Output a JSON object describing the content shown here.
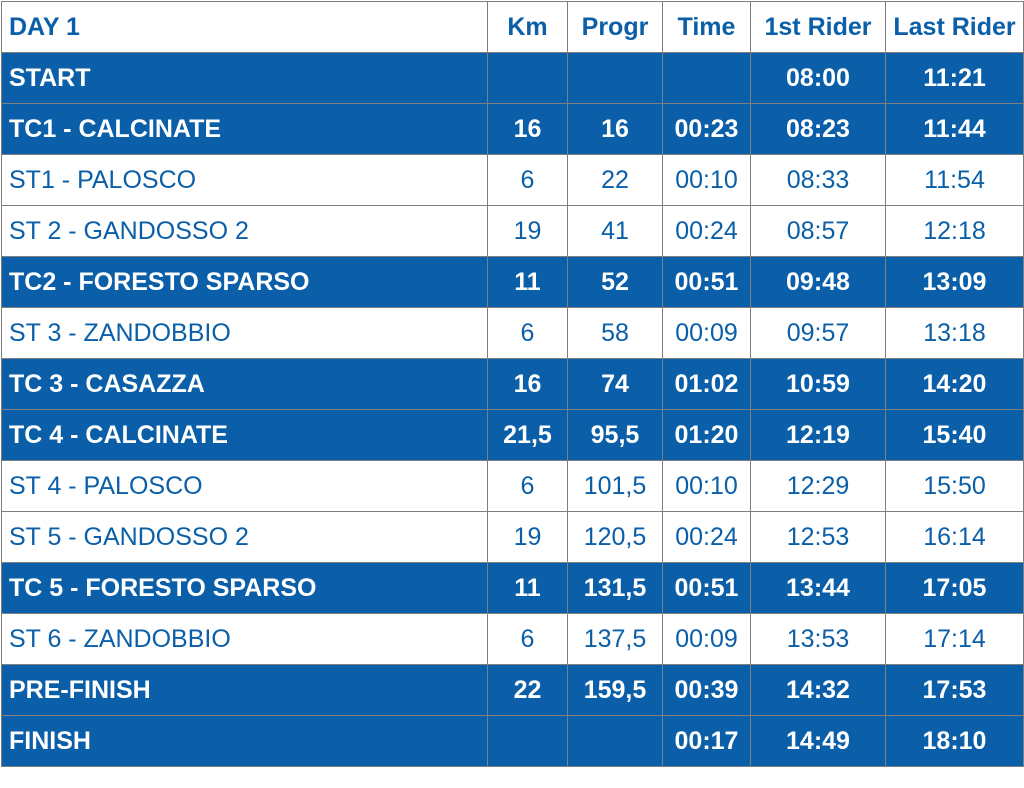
{
  "header": {
    "title": "DAY 1",
    "columns": [
      "Km",
      "Progr",
      "Time",
      "1st Rider",
      "Last Rider"
    ]
  },
  "rows": [
    {
      "name": "START",
      "km": "",
      "progr": "",
      "time": "",
      "first": "08:00",
      "last": "11:21",
      "highlight": true
    },
    {
      "name": "TC1 - CALCINATE",
      "km": "16",
      "progr": "16",
      "time": "00:23",
      "first": "08:23",
      "last": "11:44",
      "highlight": true
    },
    {
      "name": "ST1 - PALOSCO",
      "km": "6",
      "progr": "22",
      "time": "00:10",
      "first": "08:33",
      "last": "11:54",
      "highlight": false
    },
    {
      "name": "ST 2 - GANDOSSO 2",
      "km": "19",
      "progr": "41",
      "time": "00:24",
      "first": "08:57",
      "last": "12:18",
      "highlight": false
    },
    {
      "name": "TC2 - FORESTO SPARSO",
      "km": "11",
      "progr": "52",
      "time": "00:51",
      "first": "09:48",
      "last": "13:09",
      "highlight": true
    },
    {
      "name": "ST 3 - ZANDOBBIO",
      "km": "6",
      "progr": "58",
      "time": "00:09",
      "first": "09:57",
      "last": "13:18",
      "highlight": false
    },
    {
      "name": "TC 3 - CASAZZA",
      "km": "16",
      "progr": "74",
      "time": "01:02",
      "first": "10:59",
      "last": "14:20",
      "highlight": true
    },
    {
      "name": "TC 4 - CALCINATE",
      "km": "21,5",
      "progr": "95,5",
      "time": "01:20",
      "first": "12:19",
      "last": "15:40",
      "highlight": true
    },
    {
      "name": "ST 4 - PALOSCO",
      "km": "6",
      "progr": "101,5",
      "time": "00:10",
      "first": "12:29",
      "last": "15:50",
      "highlight": false
    },
    {
      "name": "ST 5 - GANDOSSO 2",
      "km": "19",
      "progr": "120,5",
      "time": "00:24",
      "first": "12:53",
      "last": "16:14",
      "highlight": false
    },
    {
      "name": "TC 5 - FORESTO SPARSO",
      "km": "11",
      "progr": "131,5",
      "time": "00:51",
      "first": "13:44",
      "last": "17:05",
      "highlight": true
    },
    {
      "name": "ST 6 - ZANDOBBIO",
      "km": "6",
      "progr": "137,5",
      "time": "00:09",
      "first": "13:53",
      "last": "17:14",
      "highlight": false
    },
    {
      "name": "PRE-FINISH",
      "km": "22",
      "progr": "159,5",
      "time": "00:39",
      "first": "14:32",
      "last": "17:53",
      "highlight": true
    },
    {
      "name": "FINISH",
      "km": "",
      "progr": "",
      "time": "00:17",
      "first": "14:49",
      "last": "18:10",
      "highlight": true
    }
  ],
  "colors": {
    "accent": "#0a5fa8",
    "row_text_plain": "#0a5fa8",
    "row_text_highlight": "#ffffff",
    "border": "#7f7f7f"
  }
}
